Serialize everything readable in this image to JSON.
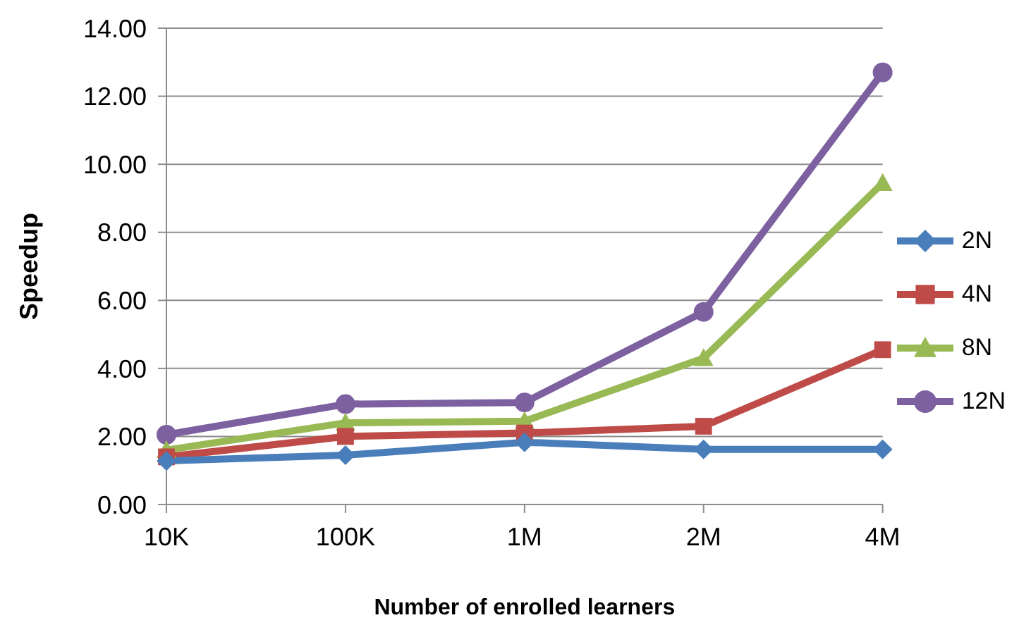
{
  "chart_data": {
    "type": "line",
    "xlabel": "Number of enrolled learners",
    "ylabel": "Speedup",
    "categories": [
      "10K",
      "100K",
      "1M",
      "2M",
      "4M"
    ],
    "series": [
      {
        "name": "2N",
        "color": "#4a7ebb",
        "marker": "diamond",
        "values": [
          1.28,
          1.45,
          1.83,
          1.62,
          1.62
        ]
      },
      {
        "name": "4N",
        "color": "#be4b48",
        "marker": "square",
        "values": [
          1.4,
          2.0,
          2.1,
          2.3,
          4.55
        ]
      },
      {
        "name": "8N",
        "color": "#98b954",
        "marker": "triangle",
        "values": [
          1.6,
          2.4,
          2.45,
          4.3,
          9.45
        ]
      },
      {
        "name": "12N",
        "color": "#7d60a0",
        "marker": "circle",
        "values": [
          2.05,
          2.95,
          3.0,
          5.66,
          12.7
        ]
      }
    ],
    "ylim": [
      0,
      14
    ],
    "yticks": [
      {
        "value": 0,
        "label": "0.00"
      },
      {
        "value": 2,
        "label": "2.00"
      },
      {
        "value": 4,
        "label": "4.00"
      },
      {
        "value": 6,
        "label": "6.00"
      },
      {
        "value": 8,
        "label": "8.00"
      },
      {
        "value": 10,
        "label": "10.00"
      },
      {
        "value": 12,
        "label": "12.00"
      },
      {
        "value": 14,
        "label": "14.00"
      }
    ],
    "grid": "y",
    "legend": "right",
    "line_style": "solid"
  }
}
